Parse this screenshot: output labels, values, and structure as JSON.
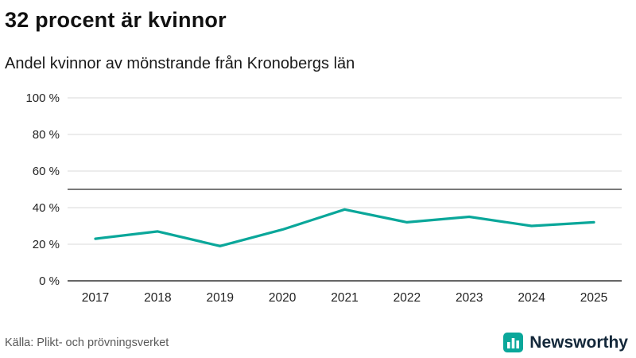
{
  "page": {
    "title": "32 procent är kvinnor",
    "subtitle": "Andel kvinnor av mönstrande från Kronobergs län",
    "source": "Källa: Plikt- och prövningsverket",
    "brand": {
      "name": "Newsworthy",
      "icon": "bar-chart-bubble-icon"
    }
  },
  "colors": {
    "line": "#0aa79a",
    "grid": "#d9d9d9",
    "axis": "#333333",
    "reference_line": "#4d4d4d",
    "tick_text": "#222222",
    "brand_teal": "#0aa79a",
    "brand_text": "#14283a"
  },
  "chart_data": {
    "type": "line",
    "title": "32 procent är kvinnor",
    "subtitle": "Andel kvinnor av mönstrande från Kronobergs län",
    "x": [
      2017,
      2018,
      2019,
      2020,
      2021,
      2022,
      2023,
      2024,
      2025
    ],
    "series": [
      {
        "name": "Andel kvinnor av mönstrande från Kronobergs län",
        "values": [
          23,
          27,
          19,
          28,
          39,
          32,
          35,
          30,
          32
        ]
      }
    ],
    "xlabel": "",
    "ylabel": "",
    "ylim": [
      0,
      100
    ],
    "yticks": [
      0,
      20,
      40,
      60,
      80,
      100
    ],
    "ytick_suffix": " %",
    "reference_line": 50,
    "grid": true,
    "legend_position": "none"
  }
}
